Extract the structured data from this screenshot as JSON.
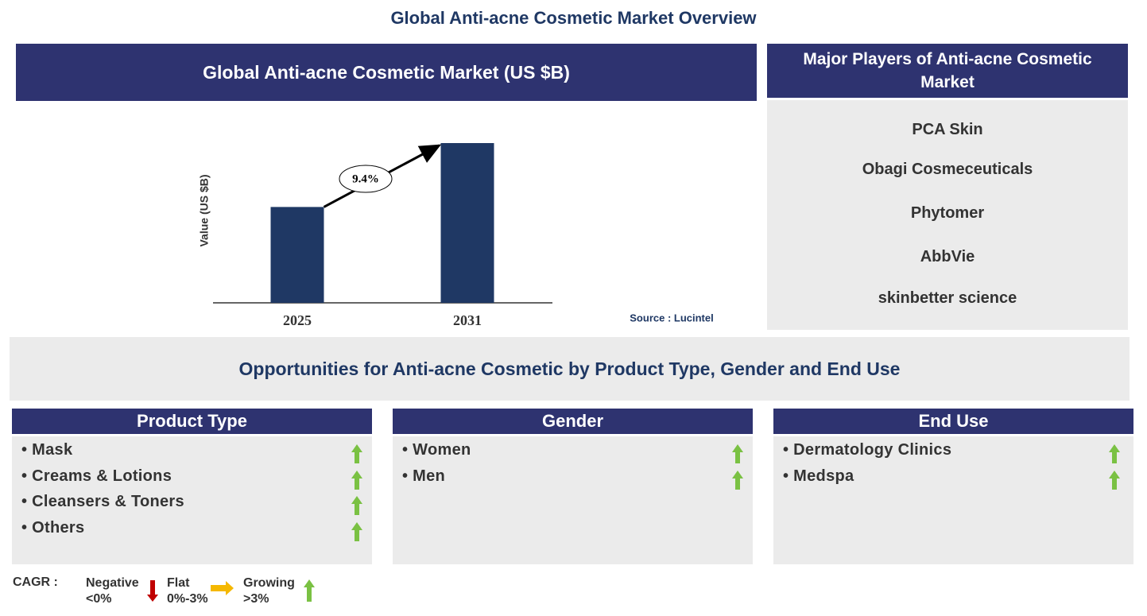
{
  "title": "Global Anti-acne Cosmetic Market Overview",
  "chart_data": {
    "type": "bar",
    "title": "Global Anti-acne Cosmetic Market (US $B)",
    "y_label": "Value (US $B)",
    "categories": [
      "2025",
      "2031"
    ],
    "values": [
      1.2,
      2.0
    ],
    "color": "#1f3864",
    "annotation": "9.4%",
    "source": "Source : Lucintel"
  },
  "players": {
    "title": "Major Players of Anti-acne Cosmetic Market",
    "items": [
      "PCA Skin",
      "Obagi Cosmeceuticals",
      "Phytomer",
      "AbbVie",
      "skinbetter science"
    ]
  },
  "opportunities": {
    "title": "Opportunities for Anti-acne Cosmetic by Product Type, Gender and End Use",
    "segments": [
      {
        "title": "Product Type",
        "items": [
          "Mask",
          "Creams & Lotions",
          "Cleansers & Toners",
          "Others"
        ]
      },
      {
        "title": "Gender",
        "items": [
          "Women",
          "Men"
        ]
      },
      {
        "title": "End Use",
        "items": [
          "Dermatology Clinics",
          "Medspa"
        ]
      }
    ]
  },
  "legend": {
    "label": "CAGR :",
    "items": [
      {
        "name": "Negative",
        "range": "<0%"
      },
      {
        "name": "Flat",
        "range": "0%-3%"
      },
      {
        "name": "Growing",
        "range": ">3%"
      }
    ]
  }
}
